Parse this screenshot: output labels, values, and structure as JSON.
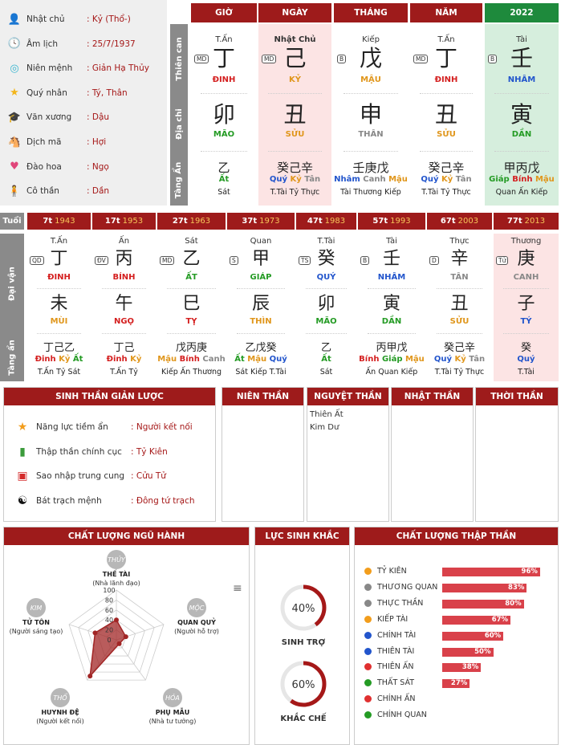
{
  "info": [
    {
      "icon": "person-icon",
      "label": "Nhật chủ",
      "value": ": Kỷ (Thổ-)"
    },
    {
      "icon": "clock-icon",
      "label": "Âm lịch",
      "value": ": 25/7/1937"
    },
    {
      "icon": "destiny-icon",
      "label": "Niên mệnh",
      "value": ": Giản Hạ Thủy"
    },
    {
      "icon": "star-icon",
      "label": "Quý nhân",
      "value": ": Tý, Thân"
    },
    {
      "icon": "graduation-cap-icon",
      "label": "Văn xương",
      "value": ": Dậu"
    },
    {
      "icon": "horse-icon",
      "label": "Dịch mã",
      "value": ": Hợi"
    },
    {
      "icon": "heart-icon",
      "label": "Đào hoa",
      "value": ": Ngọ"
    },
    {
      "icon": "single-person-icon",
      "label": "Cô thần",
      "value": ": Dần"
    }
  ],
  "side_labels": {
    "can": "Thiên can",
    "chi": "Địa chi",
    "tang": "Tàng Ẩn",
    "tuoi": "Tuổi",
    "daivan": "Đại vận",
    "tangan2": "Tàng ẩn"
  },
  "pillars": [
    {
      "head": "GIỜ",
      "god": "T.Ấn",
      "tag": "MD",
      "stem": "丁",
      "stem_el": "ĐINH",
      "stem_color": "red",
      "branch": "卯",
      "branch_el": "MÃO",
      "branch_color": "green",
      "hidden": "乙",
      "hidden_el": [
        {
          "t": "Ất",
          "c": "green"
        }
      ],
      "hidden_gods": "Sát"
    },
    {
      "head": "NGÀY",
      "god": "Nhật Chủ",
      "tag": "MD",
      "stem": "己",
      "stem_el": "KỶ",
      "stem_color": "orange",
      "branch": "丑",
      "branch_el": "SỬU",
      "branch_color": "orange",
      "hidden": "癸己辛",
      "hidden_el": [
        {
          "t": "Quý",
          "c": "blue"
        },
        {
          "t": "Kỷ",
          "c": "orange"
        },
        {
          "t": "Tân",
          "c": "gray"
        }
      ],
      "hidden_gods": "T.Tài Tỷ Thực"
    },
    {
      "head": "THÁNG",
      "god": "Kiếp",
      "tag": "B",
      "stem": "戊",
      "stem_el": "MẬU",
      "stem_color": "orange",
      "branch": "申",
      "branch_el": "THÂN",
      "branch_color": "gray",
      "hidden": "壬庚戊",
      "hidden_el": [
        {
          "t": "Nhâm",
          "c": "blue"
        },
        {
          "t": "Canh",
          "c": "gray"
        },
        {
          "t": "Mậu",
          "c": "orange"
        }
      ],
      "hidden_gods": "Tài Thương Kiếp"
    },
    {
      "head": "NĂM",
      "god": "T.Ấn",
      "tag": "MD",
      "stem": "丁",
      "stem_el": "ĐINH",
      "stem_color": "red",
      "branch": "丑",
      "branch_el": "SỬU",
      "branch_color": "orange",
      "hidden": "癸己辛",
      "hidden_el": [
        {
          "t": "Quý",
          "c": "blue"
        },
        {
          "t": "Kỷ",
          "c": "orange"
        },
        {
          "t": "Tân",
          "c": "gray"
        }
      ],
      "hidden_gods": "T.Tài Tỷ Thực"
    },
    {
      "head": "2022",
      "god": "Tài",
      "tag": "B",
      "stem": "壬",
      "stem_el": "NHÂM",
      "stem_color": "blue",
      "branch": "寅",
      "branch_el": "DẦN",
      "branch_color": "green",
      "hidden": "甲丙戊",
      "hidden_el": [
        {
          "t": "Giáp",
          "c": "green"
        },
        {
          "t": "Bính",
          "c": "red"
        },
        {
          "t": "Mậu",
          "c": "orange"
        }
      ],
      "hidden_gods": "Quan Ấn Kiếp"
    }
  ],
  "luck": [
    {
      "age": "7t",
      "year": "1943",
      "god": "T.Ấn",
      "tag": "QD",
      "stem": "丁",
      "stem_el": "ĐINH",
      "stem_color": "red",
      "branch": "未",
      "branch_el": "MÙI",
      "branch_color": "orange",
      "hidden": "丁己乙",
      "hidden_el": [
        {
          "t": "Đinh",
          "c": "red"
        },
        {
          "t": "Kỷ",
          "c": "orange"
        },
        {
          "t": "Ất",
          "c": "green"
        }
      ],
      "hidden_gods": "T.Ấn Tỷ Sát"
    },
    {
      "age": "17t",
      "year": "1953",
      "god": "Ấn",
      "tag": "ĐV",
      "stem": "丙",
      "stem_el": "BÍNH",
      "stem_color": "red",
      "branch": "午",
      "branch_el": "NGỌ",
      "branch_color": "red",
      "hidden": "丁己",
      "hidden_el": [
        {
          "t": "Đinh",
          "c": "red"
        },
        {
          "t": "Kỷ",
          "c": "orange"
        }
      ],
      "hidden_gods": "T.Ấn Tỷ"
    },
    {
      "age": "27t",
      "year": "1963",
      "god": "Sát",
      "tag": "MD",
      "stem": "乙",
      "stem_el": "ẤT",
      "stem_color": "green",
      "branch": "巳",
      "branch_el": "TỴ",
      "branch_color": "red",
      "hidden": "戊丙庚",
      "hidden_el": [
        {
          "t": "Mậu",
          "c": "orange"
        },
        {
          "t": "Bính",
          "c": "red"
        },
        {
          "t": "Canh",
          "c": "gray"
        }
      ],
      "hidden_gods": "Kiếp Ấn Thương"
    },
    {
      "age": "37t",
      "year": "1973",
      "god": "Quan",
      "tag": "S",
      "stem": "甲",
      "stem_el": "GIÁP",
      "stem_color": "green",
      "branch": "辰",
      "branch_el": "THÌN",
      "branch_color": "orange",
      "hidden": "乙戊癸",
      "hidden_el": [
        {
          "t": "Ất",
          "c": "green"
        },
        {
          "t": "Mậu",
          "c": "orange"
        },
        {
          "t": "Quý",
          "c": "blue"
        }
      ],
      "hidden_gods": "Sát Kiếp T.Tài"
    },
    {
      "age": "47t",
      "year": "1983",
      "god": "T.Tài",
      "tag": "TS",
      "stem": "癸",
      "stem_el": "QUÝ",
      "stem_color": "blue",
      "branch": "卯",
      "branch_el": "MÃO",
      "branch_color": "green",
      "hidden": "乙",
      "hidden_el": [
        {
          "t": "Ất",
          "c": "green"
        }
      ],
      "hidden_gods": "Sát"
    },
    {
      "age": "57t",
      "year": "1993",
      "god": "Tài",
      "tag": "B",
      "stem": "壬",
      "stem_el": "NHÂM",
      "stem_color": "blue",
      "branch": "寅",
      "branch_el": "DẦN",
      "branch_color": "green",
      "hidden": "丙甲戊",
      "hidden_el": [
        {
          "t": "Bính",
          "c": "red"
        },
        {
          "t": "Giáp",
          "c": "green"
        },
        {
          "t": "Mậu",
          "c": "orange"
        }
      ],
      "hidden_gods": "Ấn Quan Kiếp"
    },
    {
      "age": "67t",
      "year": "2003",
      "god": "Thực",
      "tag": "D",
      "stem": "辛",
      "stem_el": "TÂN",
      "stem_color": "gray",
      "branch": "丑",
      "branch_el": "SỬU",
      "branch_color": "orange",
      "hidden": "癸己辛",
      "hidden_el": [
        {
          "t": "Quý",
          "c": "blue"
        },
        {
          "t": "Kỷ",
          "c": "orange"
        },
        {
          "t": "Tân",
          "c": "gray"
        }
      ],
      "hidden_gods": "T.Tài Tỷ Thực"
    },
    {
      "age": "77t",
      "year": "2013",
      "god": "Thương",
      "tag": "Tử",
      "stem": "庚",
      "stem_el": "CANH",
      "stem_color": "gray",
      "branch": "子",
      "branch_el": "TÝ",
      "branch_color": "blue",
      "hidden": "癸",
      "hidden_el": [
        {
          "t": "Quý",
          "c": "blue"
        }
      ],
      "hidden_gods": "T.Tài"
    }
  ],
  "summary": {
    "title": "SINH THẦN GIẢN LƯỢC",
    "rows": [
      {
        "icon": "star-badge-icon",
        "label": "Năng lực tiềm ẩn",
        "value": ": Người kết nối"
      },
      {
        "icon": "bar-chart-icon",
        "label": "Thập thần chính cục",
        "value": ": Tỷ Kiên"
      },
      {
        "icon": "card-icon",
        "label": "Sao nhập trung cung",
        "value": ": Cửu Tử"
      },
      {
        "icon": "yin-yang-icon",
        "label": "Bát trạch mệnh",
        "value": ": Đông tứ trạch"
      }
    ]
  },
  "than": {
    "nien": "NIÊN THẦN",
    "nguyet": "NGUYỆT THẦN",
    "nhat": "NHẬT THẦN",
    "thoi": "THỜI THẦN",
    "nguyet_items": [
      "Thiên Ất",
      "Kim Dư"
    ]
  },
  "wuxing": {
    "title": "CHẤT LƯỢNG NGŨ HÀNH",
    "chart_data": {
      "type": "radar",
      "categories": [
        "THỦY",
        "MỘC",
        "HỎA",
        "THỔ",
        "KIM"
      ],
      "names": [
        "THẾ TÀI",
        "QUAN QUỶ",
        "PHỤ MẪU",
        "HUYNH ĐỆ",
        "TỬ TÔN"
      ],
      "subs": [
        "(Nhà lãnh đạo)",
        "(Người hỗ trợ)",
        "(Nhà tư tưởng)",
        "(Người kết nối)",
        "(Người sáng tạo)"
      ],
      "values": [
        40,
        20,
        5,
        90,
        45
      ],
      "ticks": [
        "100",
        "80",
        "60",
        "40",
        "20",
        "0"
      ],
      "ylim": [
        0,
        100
      ],
      "color": "#a12525"
    }
  },
  "sinhkhac": {
    "title": "LỰC SINH KHẮC",
    "items": [
      {
        "value": "40%",
        "pct": 40,
        "label": "SINH TRỢ"
      },
      {
        "value": "60%",
        "pct": 60,
        "label": "KHẮC CHẾ"
      }
    ]
  },
  "thapthan": {
    "title": "CHẤT LƯỢNG THẬP THẦN",
    "chart_data": {
      "type": "bar",
      "categories": [
        "TỶ KIÊN",
        "THƯƠNG QUAN",
        "THỰC THẦN",
        "KIẾP TÀI",
        "CHÍNH TÀI",
        "THIÊN TÀI",
        "THIÊN ẤN",
        "THẤT SÁT",
        "CHÍNH ẤN",
        "CHÍNH QUAN"
      ],
      "values": [
        96,
        83,
        80,
        67,
        60,
        50,
        38,
        27,
        0,
        0
      ],
      "labels": [
        "96%",
        "83%",
        "80%",
        "67%",
        "60%",
        "50%",
        "38%",
        "27%",
        "",
        ""
      ],
      "dot_colors": [
        "#f29d1c",
        "#888888",
        "#888888",
        "#f29d1c",
        "#2255cc",
        "#2255cc",
        "#e03030",
        "#249b24",
        "#e03030",
        "#249b24"
      ],
      "bar_color": "#d9414a",
      "xlim": [
        0,
        100
      ]
    }
  }
}
